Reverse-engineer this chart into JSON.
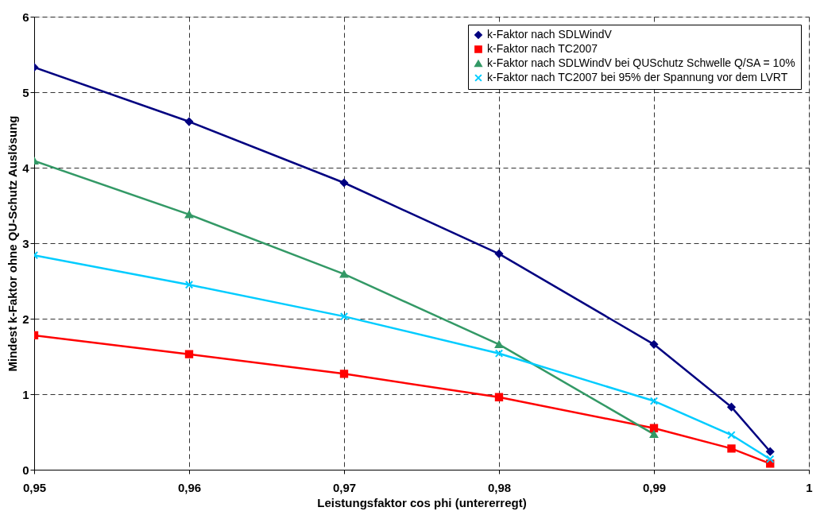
{
  "chart_data": {
    "type": "line",
    "xlabel": "Leistungsfaktor cos phi (untererregt)",
    "ylabel": "Mindest k-Faktor ohne QU-Schutz Auslösung",
    "xlim": [
      0.95,
      1
    ],
    "ylim": [
      0,
      6
    ],
    "xticks": [
      {
        "value": 0.95,
        "label": "0,95"
      },
      {
        "value": 0.96,
        "label": "0,96"
      },
      {
        "value": 0.97,
        "label": "0,97"
      },
      {
        "value": 0.98,
        "label": "0,98"
      },
      {
        "value": 0.99,
        "label": "0,99"
      },
      1
    ],
    "yticks": [
      0,
      1,
      2,
      3,
      4,
      5,
      6
    ],
    "grid": true,
    "legend": "top right",
    "line_style": "solid",
    "series": [
      {
        "name": "k-Faktor nach SDLWindV",
        "color": "#000080",
        "marker": "diamond",
        "x": [
          0.95,
          0.96,
          0.97,
          0.98,
          0.99,
          0.995,
          0.9975
        ],
        "values": [
          5.33,
          4.61,
          3.8,
          2.86,
          1.66,
          0.83,
          0.24
        ]
      },
      {
        "name": "k-Faktor nach TC2007",
        "color": "#ff0000",
        "marker": "square",
        "x": [
          0.95,
          0.96,
          0.97,
          0.98,
          0.99,
          0.995,
          0.9975
        ],
        "values": [
          1.78,
          1.53,
          1.27,
          0.96,
          0.55,
          0.28,
          0.08
        ]
      },
      {
        "name": "k-Faktor nach SDLWindV bei QUSchutz Schwelle Q/SA = 10%",
        "color": "#339966",
        "marker": "triangle",
        "x": [
          0.95,
          0.96,
          0.97,
          0.98,
          0.99
        ],
        "values": [
          4.09,
          3.38,
          2.59,
          1.66,
          0.47
        ]
      },
      {
        "name": "k-Faktor nach TC2007 bei 95% der Spannung vor dem LVRT",
        "color": "#00ccff",
        "marker": "cross",
        "x": [
          0.95,
          0.96,
          0.97,
          0.98,
          0.99,
          0.995,
          0.9975
        ],
        "values": [
          2.84,
          2.45,
          2.03,
          1.54,
          0.91,
          0.46,
          0.14
        ]
      }
    ]
  }
}
